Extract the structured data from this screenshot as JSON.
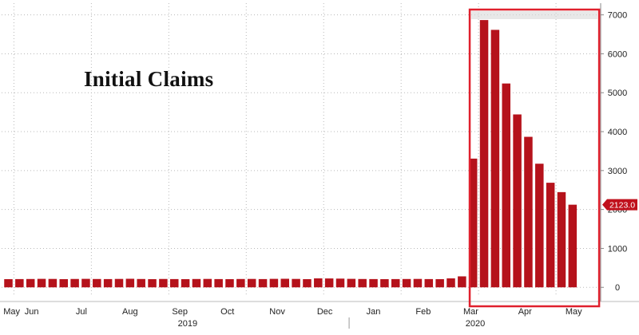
{
  "chart_data": {
    "type": "bar",
    "title": "Initial Claims",
    "xlabel": "",
    "ylabel": "",
    "ylim": [
      -200,
      7300
    ],
    "yticks": [
      0,
      1000,
      2000,
      3000,
      4000,
      5000,
      6000,
      7000
    ],
    "grid": true,
    "bar_color": "#b5121b",
    "highlight_color": "#e0202d",
    "last_value_label": "2123.0",
    "x_month_labels": [
      {
        "label": "May",
        "x": 0.3
      },
      {
        "label": "Jun",
        "x": 2.1
      },
      {
        "label": "Jul",
        "x": 6.6
      },
      {
        "label": "Aug",
        "x": 11.0
      },
      {
        "label": "Sep",
        "x": 15.5
      },
      {
        "label": "Oct",
        "x": 19.8
      },
      {
        "label": "Nov",
        "x": 24.3
      },
      {
        "label": "Dec",
        "x": 28.6
      },
      {
        "label": "Jan",
        "x": 33.0
      },
      {
        "label": "Feb",
        "x": 37.5
      },
      {
        "label": "Mar",
        "x": 41.8
      },
      {
        "label": "Apr",
        "x": 46.7
      },
      {
        "label": "May",
        "x": 51.1
      }
    ],
    "x_year_labels": [
      {
        "label": "2019",
        "x": 16.2
      },
      {
        "label": "2020",
        "x": 42.2
      }
    ],
    "highlight_range": [
      41.7,
      53.4
    ],
    "values": [
      210,
      212,
      214,
      218,
      216,
      210,
      215,
      218,
      214,
      212,
      216,
      220,
      214,
      210,
      215,
      212,
      210,
      214,
      216,
      212,
      210,
      214,
      216,
      212,
      218,
      220,
      216,
      210,
      230,
      228,
      224,
      218,
      214,
      212,
      210,
      212,
      214,
      216,
      212,
      210,
      230,
      282,
      3307,
      6867,
      6615,
      5237,
      4442,
      3867,
      3176,
      2687,
      2446,
      2123
    ]
  }
}
